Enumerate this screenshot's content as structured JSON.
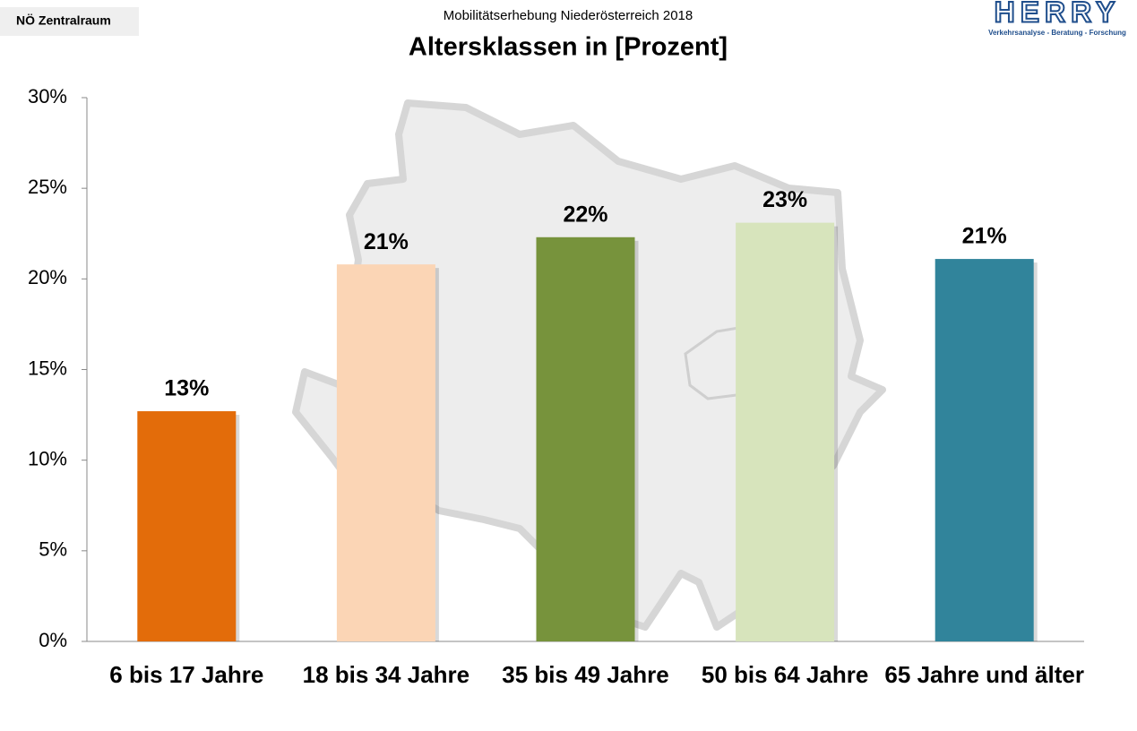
{
  "chart_data": {
    "type": "bar",
    "region_label": "NÖ Zentralraum",
    "subtitle": "Mobilitätserhebung Niederösterreich 2018",
    "title": "Altersklassen in [Prozent]",
    "logo": {
      "name": "HERRY",
      "tagline": "Verkehrsanalyse - Beratung - Forschung"
    },
    "categories": [
      "6 bis 17 Jahre",
      "18 bis 34 Jahre",
      "35 bis 49 Jahre",
      "50 bis 64 Jahre",
      "65 Jahre und älter"
    ],
    "values": [
      12.7,
      20.8,
      22.3,
      23.1,
      21.1
    ],
    "value_labels": [
      "13%",
      "21%",
      "22%",
      "23%",
      "21%"
    ],
    "colors": [
      "#e36c0a",
      "#fbd5b5",
      "#77933c",
      "#d7e4bc",
      "#31849b"
    ],
    "ylim": [
      0,
      30
    ],
    "yticks": [
      {
        "value": 0,
        "label": "0%"
      },
      {
        "value": 5,
        "label": "5%"
      },
      {
        "value": 10,
        "label": "10%"
      },
      {
        "value": 15,
        "label": "15%"
      },
      {
        "value": 20,
        "label": "20%"
      },
      {
        "value": 25,
        "label": "25%"
      },
      {
        "value": 30,
        "label": "30%"
      }
    ],
    "grid": false
  }
}
